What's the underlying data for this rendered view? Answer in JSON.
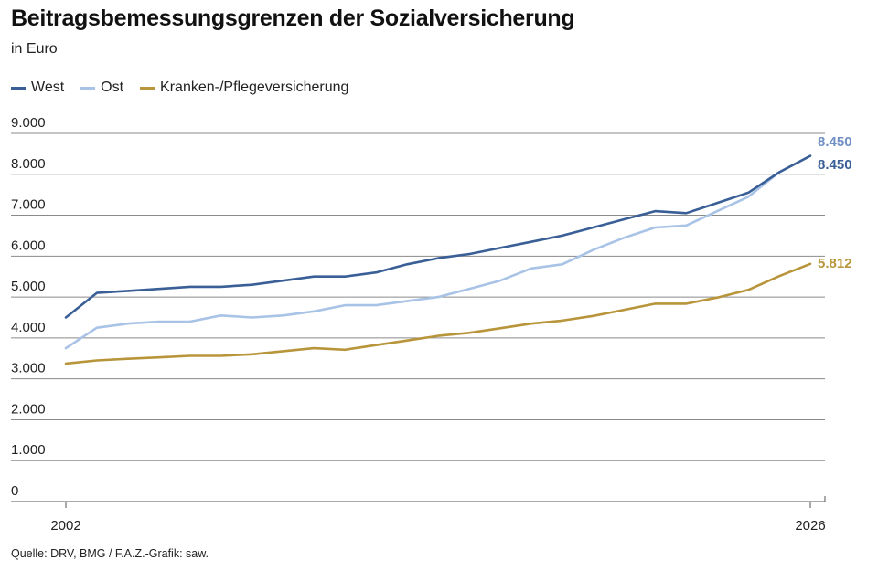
{
  "header": {
    "title": "Beitragsbemessungsgrenzen der Sozialversicherung",
    "subtitle": "in Euro"
  },
  "source": "Quelle: DRV, BMG / F.A.Z.-Grafik: saw.",
  "colors": {
    "West": "#3a5f97",
    "Ost": "#a8c3e6",
    "Kranken": "#b8953a",
    "grid": "#8a8a8a",
    "axis": "#555555"
  },
  "chart_data": {
    "type": "line",
    "title": "Beitragsbemessungsgrenzen der Sozialversicherung",
    "subtitle": "in Euro",
    "ylim": [
      0,
      9000
    ],
    "yticks": [
      0,
      1000,
      2000,
      3000,
      4000,
      5000,
      6000,
      7000,
      8000,
      9000
    ],
    "ytick_labels": [
      "0",
      "1.000",
      "2.000",
      "3.000",
      "4.000",
      "5.000",
      "6.000",
      "7.000",
      "8.000",
      "9.000"
    ],
    "xlim": [
      2002,
      2026
    ],
    "xtick_labels": [
      "2002",
      "2026"
    ],
    "grid": true,
    "legend_position": "top-left",
    "x": [
      2002,
      2003,
      2004,
      2005,
      2006,
      2007,
      2008,
      2009,
      2010,
      2011,
      2012,
      2013,
      2014,
      2015,
      2016,
      2017,
      2018,
      2019,
      2020,
      2021,
      2022,
      2023,
      2024,
      2025,
      2026
    ],
    "series": [
      {
        "name": "West",
        "values": [
          4500,
          5100,
          5150,
          5200,
          5250,
          5250,
          5300,
          5400,
          5500,
          5500,
          5600,
          5800,
          5950,
          6050,
          6200,
          6350,
          6500,
          6700,
          6900,
          7100,
          7050,
          7300,
          7550,
          8050,
          8450
        ],
        "end_label": "8.450"
      },
      {
        "name": "Ost",
        "values": [
          3750,
          4250,
          4350,
          4400,
          4400,
          4550,
          4500,
          4550,
          4650,
          4800,
          4800,
          4900,
          5000,
          5200,
          5400,
          5700,
          5800,
          6150,
          6450,
          6700,
          6750,
          7100,
          7450,
          8050,
          8450
        ],
        "end_label": "8.450"
      },
      {
        "name": "Kranken-/Pflegeversicherung",
        "values": [
          3375,
          3450,
          3490,
          3525,
          3562,
          3562,
          3600,
          3675,
          3750,
          3712,
          3825,
          3937,
          4050,
          4125,
          4237,
          4350,
          4425,
          4537,
          4687,
          4837,
          4837,
          4987,
          5175,
          5512,
          5812
        ],
        "end_label": "5.812"
      }
    ]
  }
}
